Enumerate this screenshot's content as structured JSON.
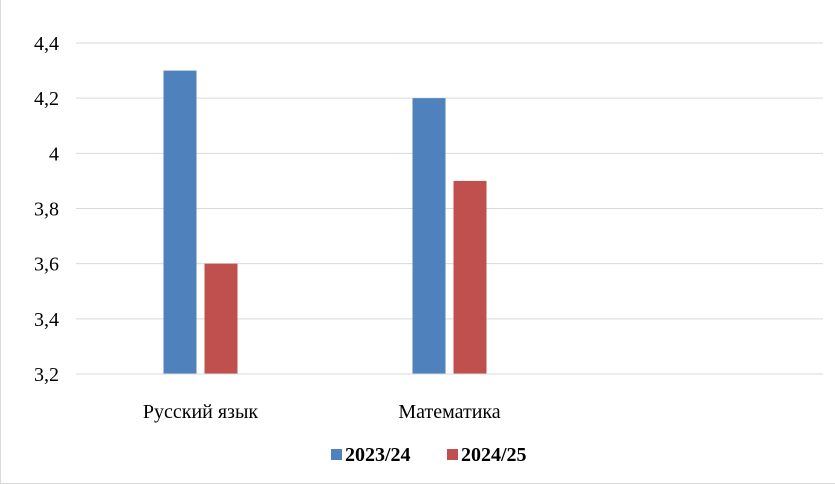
{
  "chart_data": {
    "type": "bar",
    "categories": [
      "Русский язык",
      "Математика",
      ""
    ],
    "series": [
      {
        "name": "2023/24",
        "values": [
          4.3,
          4.2,
          null
        ],
        "color": "#4f81bd"
      },
      {
        "name": "2024/25",
        "values": [
          3.6,
          3.9,
          null
        ],
        "color": "#c0504d"
      }
    ],
    "yticks": [
      "3,2",
      "3,4",
      "3,6",
      "3,8",
      "4",
      "4,2",
      "4,4"
    ],
    "ylim": [
      3.2,
      4.4
    ],
    "grid": true,
    "legend_position": "bottom",
    "title": "",
    "xlabel": "",
    "ylabel": ""
  }
}
